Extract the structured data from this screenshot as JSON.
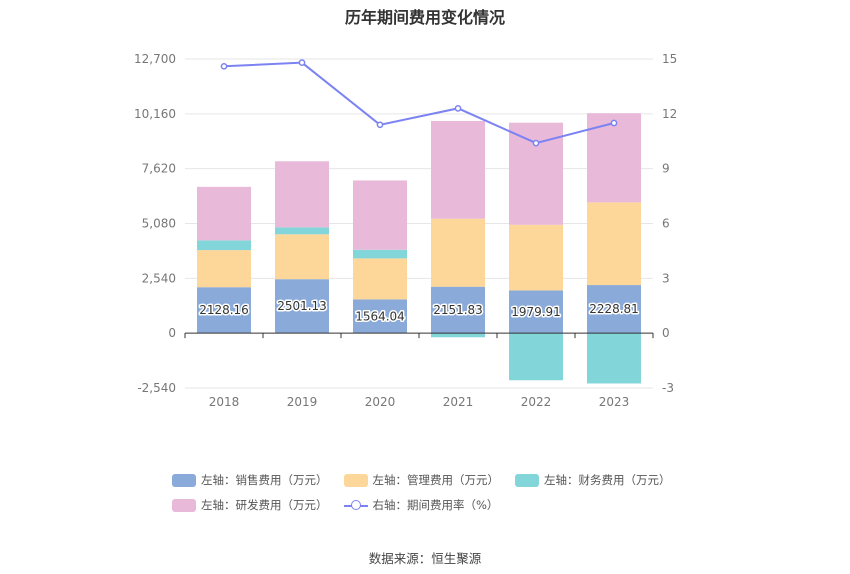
{
  "chart_data": {
    "type": "bar",
    "title": "历年期间费用变化情况",
    "categories": [
      "2018",
      "2019",
      "2020",
      "2021",
      "2022",
      "2023"
    ],
    "series": [
      {
        "name": "左轴：销售费用（万元）",
        "axis": "left",
        "kind": "bar",
        "color": "#8aabd9",
        "values": [
          2128.16,
          2501.13,
          1564.04,
          2151.83,
          1979.91,
          2228.81
        ]
      },
      {
        "name": "左轴：管理费用（万元）",
        "axis": "left",
        "kind": "bar",
        "color": "#fdd699",
        "values": [
          1720,
          2080,
          1900,
          3150,
          3040,
          3830
        ]
      },
      {
        "name": "左轴：财务费用（万元）",
        "axis": "left",
        "kind": "bar",
        "color": "#82d5d9",
        "values": [
          450,
          320,
          400,
          -190,
          -2180,
          -2330
        ]
      },
      {
        "name": "左轴：研发费用（万元）",
        "axis": "left",
        "kind": "bar",
        "color": "#e8b9d9",
        "values": [
          2480,
          3060,
          3210,
          4530,
          4730,
          4130
        ]
      },
      {
        "name": "右轴：期间费用率（%）",
        "axis": "right",
        "kind": "line",
        "color": "#7b83f2",
        "values": [
          14.6,
          14.8,
          11.4,
          12.3,
          10.4,
          11.5
        ]
      }
    ],
    "data_labels": [
      "2128.16",
      "2501.13",
      "1564.04",
      "2151.83",
      "1979.91",
      "2228.81"
    ],
    "y_left": {
      "min": -2540,
      "max": 12700,
      "ticks": [
        -2540,
        0,
        2540,
        5080,
        7620,
        10160,
        12700
      ],
      "tick_labels": [
        "-2,540",
        "0",
        "2,540",
        "5,080",
        "7,620",
        "10,160",
        "12,700"
      ]
    },
    "y_right": {
      "min": -3,
      "max": 15,
      "ticks": [
        -3,
        0,
        3,
        6,
        9,
        12,
        15
      ],
      "tick_labels": [
        "-3",
        "0",
        "3",
        "6",
        "9",
        "12",
        "15"
      ]
    },
    "legend_position": "bottom",
    "grid": true
  },
  "legend": {
    "colors": {
      "sales": "#8aabd9",
      "admin": "#fdd699",
      "finance": "#82d5d9",
      "rd": "#e8b9d9",
      "rate": "#7b83f2"
    },
    "sales": "左轴：销售费用（万元）",
    "admin": "左轴：管理费用（万元）",
    "finance": "左轴：财务费用（万元）",
    "rd": "左轴：研发费用（万元）",
    "rate": "右轴：期间费用率（%）"
  },
  "source": "数据来源：恒生聚源"
}
